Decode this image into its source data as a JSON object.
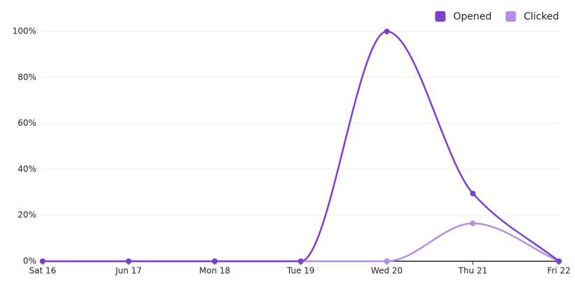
{
  "chart_data": {
    "type": "line",
    "categories": [
      "Sat 16",
      "Jun 17",
      "Mon 18",
      "Tue 19",
      "Wed 20",
      "Thu 21",
      "Fri 22"
    ],
    "series": [
      {
        "name": "Opened",
        "color": "#7b3fd0",
        "values": [
          0,
          0,
          0,
          0,
          100,
          29.5,
          0
        ]
      },
      {
        "name": "Clicked",
        "color": "#b48fe6",
        "values": [
          0,
          0,
          0,
          0,
          0,
          16.5,
          0
        ]
      }
    ],
    "ylim": [
      0,
      100
    ],
    "yticks": [
      {
        "value": 0,
        "label": "0%"
      },
      {
        "value": 20,
        "label": "20%"
      },
      {
        "value": 40,
        "label": "40%"
      },
      {
        "value": 60,
        "label": "60%"
      },
      {
        "value": 80,
        "label": "80%"
      },
      {
        "value": 100,
        "label": "100%"
      }
    ],
    "grid": true,
    "legend": "top-right",
    "smooth": true
  }
}
